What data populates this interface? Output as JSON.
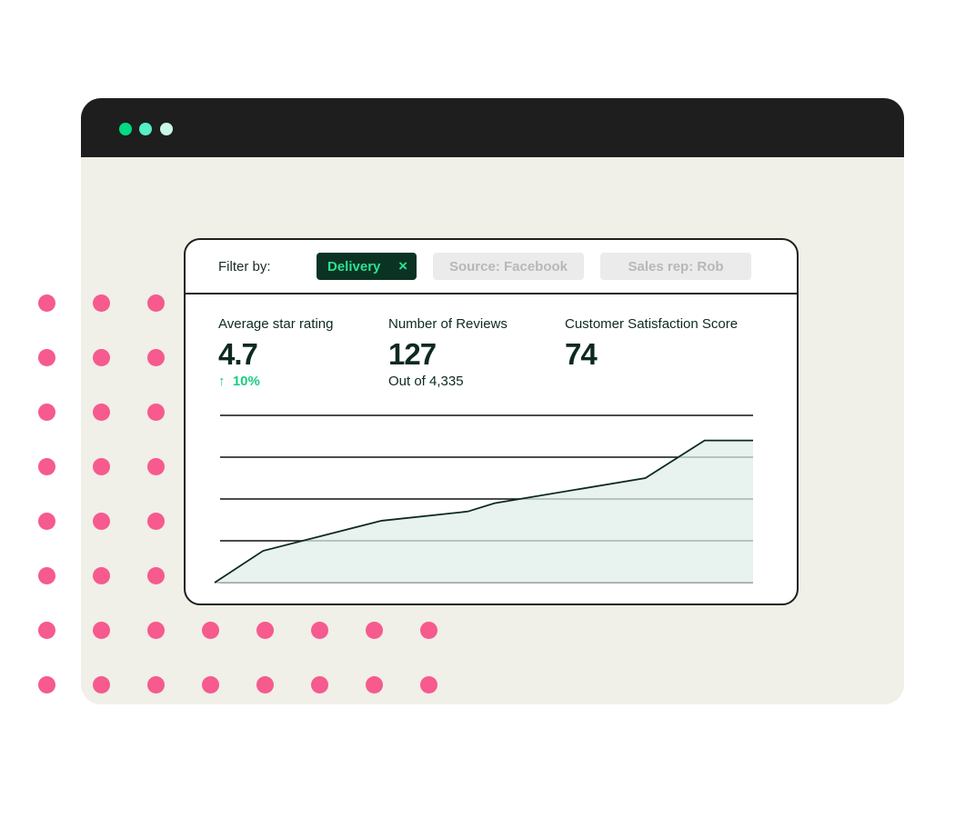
{
  "window": {
    "dot_colors": [
      "#00db82",
      "#55efc4",
      "#c9f8e6"
    ]
  },
  "filter": {
    "label": "Filter by:",
    "chips": [
      {
        "label": "Delivery",
        "active": true,
        "close_icon": "×"
      },
      {
        "label": "Source: Facebook",
        "active": false
      },
      {
        "label": "Sales rep: Rob",
        "active": false
      }
    ]
  },
  "metrics": [
    {
      "label": "Average star rating",
      "value": "4.7",
      "delta_icon": "↑",
      "delta": "10%"
    },
    {
      "label": "Number of Reviews",
      "value": "127",
      "sub": "Out of 4,335"
    },
    {
      "label": "Customer Satisfaction Score",
      "value": "74"
    }
  ],
  "chart_data": {
    "type": "area",
    "grid": true,
    "ylim": [
      0,
      4
    ],
    "x": [
      0,
      9,
      31,
      47,
      52,
      80,
      91,
      100
    ],
    "values": [
      0,
      0.76,
      1.48,
      1.7,
      1.9,
      2.5,
      3.4,
      3.4
    ],
    "line_color": "#0d2a1f",
    "fill_color": "#e8f2ef"
  },
  "decoration": {
    "dot_color": "#f65a8e"
  }
}
